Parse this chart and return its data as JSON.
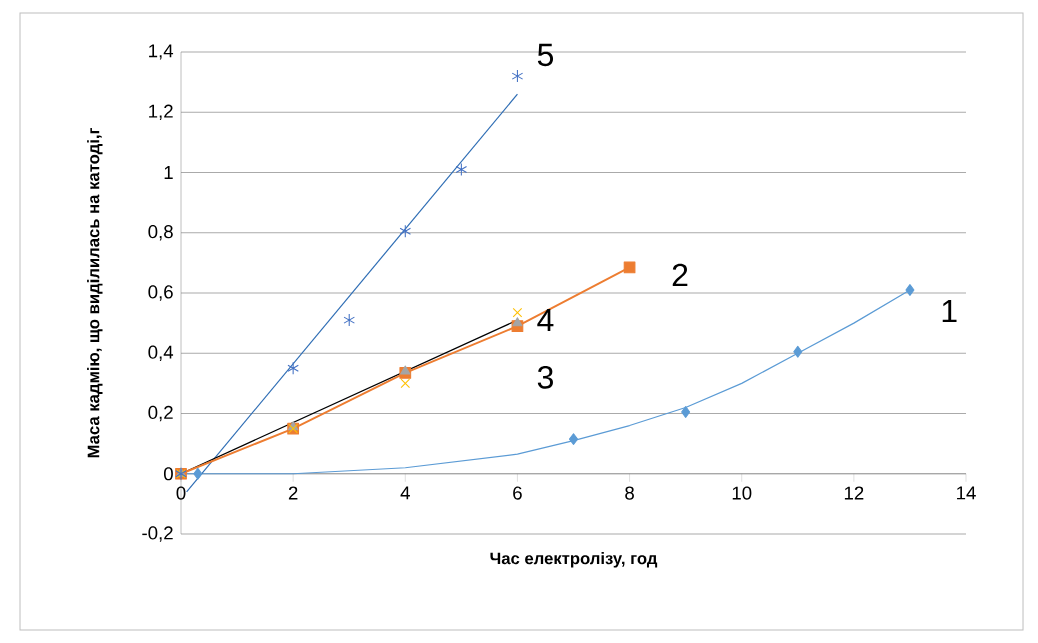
{
  "chart_data": {
    "type": "scatter",
    "xlabel": "Час електролізу, год",
    "ylabel": "Маса кадмію, що виділилась на катоді,г",
    "xlim": [
      0,
      14
    ],
    "xticks": [
      0,
      2,
      4,
      6,
      8,
      10,
      12,
      14
    ],
    "ylim": [
      -0.2,
      1.4
    ],
    "yticks": [
      {
        "value": -0.2,
        "label": "-0,2"
      },
      0,
      {
        "value": 0.2,
        "label": "0,2"
      },
      {
        "value": 0.4,
        "label": "0,4"
      },
      {
        "value": 0.6,
        "label": "0,6"
      },
      {
        "value": 0.8,
        "label": "0,8"
      },
      1,
      {
        "value": 1.2,
        "label": "1,2"
      },
      {
        "value": 1.4,
        "label": "1,4"
      }
    ],
    "grid": "y",
    "series": [
      {
        "type": "line",
        "marker": "none",
        "color": "#5b9bd5",
        "x": [
          0,
          2,
          4,
          6,
          7,
          8,
          9,
          10,
          11,
          12,
          13
        ],
        "values": [
          0,
          0,
          0.02,
          0.065,
          0.11,
          0.16,
          0.22,
          0.3,
          0.4,
          0.5,
          0.61
        ]
      },
      {
        "type": "line",
        "marker": "none",
        "color": "#2e6db4",
        "x": [
          0.1,
          6
        ],
        "values": [
          -0.06,
          1.26
        ]
      },
      {
        "type": "line",
        "marker": "none",
        "color": "#000000",
        "x": [
          0,
          6
        ],
        "values": [
          0,
          0.51
        ]
      },
      {
        "marker": "diamond",
        "color": "#5b9bd5",
        "x": [
          0.3,
          7,
          9,
          11,
          13
        ],
        "values": [
          0,
          0.115,
          0.205,
          0.405,
          0.61
        ]
      },
      {
        "type": "line",
        "marker": "square",
        "color": "#ed7d31",
        "x": [
          0,
          2,
          4,
          6,
          8
        ],
        "values": [
          0,
          0.15,
          0.335,
          0.49,
          0.685
        ]
      },
      {
        "marker": "triangle",
        "color": "#a5a5a5",
        "x": [
          0,
          2,
          4,
          6
        ],
        "values": [
          0,
          0.155,
          0.34,
          0.5
        ]
      },
      {
        "marker": "cross",
        "color": "#ffc000",
        "x": [
          0,
          2,
          4,
          6
        ],
        "values": [
          0,
          0.15,
          0.3,
          0.535
        ]
      },
      {
        "color": "#4472c4",
        "x": [
          0,
          2,
          3,
          4,
          5,
          6
        ],
        "values": [
          0,
          0.35,
          0.51,
          0.805,
          1.01,
          1.32
        ]
      }
    ],
    "annotations": [
      "1",
      "2",
      "3",
      "4",
      "5"
    ]
  }
}
